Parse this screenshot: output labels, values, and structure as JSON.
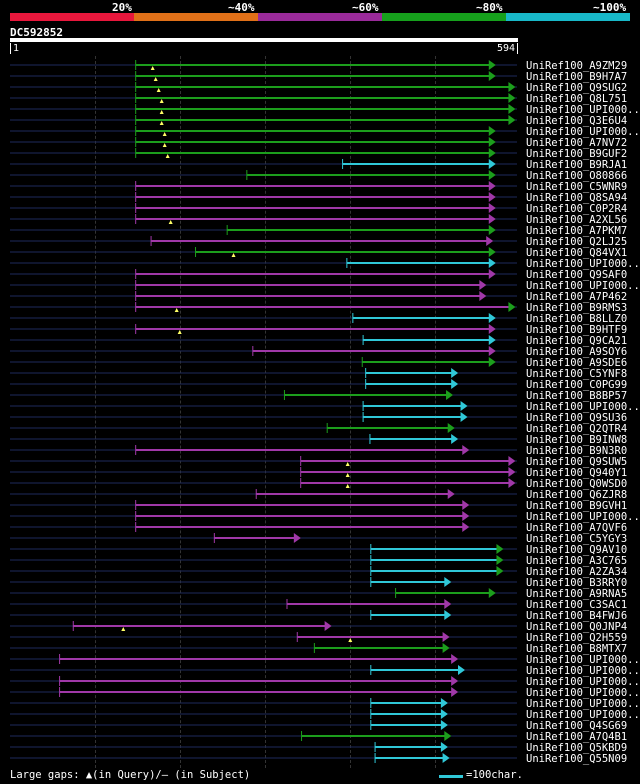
{
  "scale": {
    "segments": [
      {
        "color": "#e8173c",
        "frac": 0.2
      },
      {
        "color": "#e07018",
        "frac": 0.2
      },
      {
        "color": "#9a2a9a",
        "frac": 0.2
      },
      {
        "color": "#16a01c",
        "frac": 0.2
      },
      {
        "color": "#18b8c8",
        "frac": 0.2
      }
    ],
    "labels": [
      "20%",
      "~40%",
      "~60%",
      "~80%",
      "~100%"
    ]
  },
  "query": {
    "name": "DC592852",
    "start": "1",
    "end": "594",
    "length": 594
  },
  "colors": {
    "green": "#1c9e1c",
    "magenta": "#a038a8",
    "cyan": "#30c8d8",
    "tick": "#ffff66",
    "guide": "#1e2a5c"
  },
  "legend": {
    "gaps_text": "Large gaps: ▲(in Query)/– (in Subject)",
    "scale_text": "=100char."
  },
  "chart_data": {
    "type": "alignment",
    "x_units": "query residue position",
    "xlim": [
      1,
      594
    ],
    "hits": [
      {
        "label": "UniRef100_A9ZM29",
        "color": "green",
        "start": 148,
        "end": 568,
        "arrow": "green",
        "ticks": [
          1
        ]
      },
      {
        "label": "UniRef100_B9H7A7",
        "color": "green",
        "start": 148,
        "end": 568,
        "arrow": "green",
        "ticks": [
          2
        ]
      },
      {
        "label": "UniRef100_Q9SUG2",
        "color": "green",
        "start": 148,
        "end": 591,
        "arrow": "green",
        "ticks": [
          3
        ]
      },
      {
        "label": "UniRef100_Q8L751",
        "color": "green",
        "start": 148,
        "end": 591,
        "arrow": "green",
        "ticks": [
          4
        ]
      },
      {
        "label": "UniRef100_UPI000...",
        "color": "green",
        "start": 148,
        "end": 591,
        "arrow": "green",
        "ticks": [
          4
        ]
      },
      {
        "label": "UniRef100_Q3E6U4",
        "color": "green",
        "start": 148,
        "end": 591,
        "arrow": "green",
        "ticks": [
          4
        ]
      },
      {
        "label": "UniRef100_UPI000...",
        "color": "green",
        "start": 148,
        "end": 568,
        "arrow": "green",
        "ticks": [
          5
        ]
      },
      {
        "label": "UniRef100_A7NV72",
        "color": "green",
        "start": 148,
        "end": 568,
        "arrow": "green",
        "ticks": [
          5
        ]
      },
      {
        "label": "UniRef100_B9GUF2",
        "color": "green",
        "start": 148,
        "end": 568,
        "arrow": "green",
        "ticks": [
          6
        ]
      },
      {
        "label": "UniRef100_B9RJA1",
        "color": "cyan",
        "start": 390,
        "end": 568,
        "arrow": "cyan",
        "ticks": []
      },
      {
        "label": "UniRef100_O80866",
        "color": "green",
        "start": 278,
        "end": 568,
        "arrow": "green",
        "ticks": []
      },
      {
        "label": "UniRef100_C5WNR9",
        "color": "magenta",
        "start": 148,
        "end": 568,
        "arrow": "magenta",
        "ticks": []
      },
      {
        "label": "UniRef100_Q8SA94",
        "color": "magenta",
        "start": 148,
        "end": 568,
        "arrow": "magenta",
        "ticks": []
      },
      {
        "label": "UniRef100_C0P2R4",
        "color": "magenta",
        "start": 148,
        "end": 568,
        "arrow": "magenta",
        "ticks": []
      },
      {
        "label": "UniRef100_A2XL56",
        "color": "magenta",
        "start": 148,
        "end": 568,
        "arrow": "magenta",
        "ticks": [
          7
        ]
      },
      {
        "label": "UniRef100_A7PKM7",
        "color": "green",
        "start": 255,
        "end": 568,
        "arrow": "green",
        "ticks": []
      },
      {
        "label": "UniRef100_Q2LJ25",
        "color": "magenta",
        "start": 166,
        "end": 565,
        "arrow": "magenta",
        "ticks": []
      },
      {
        "label": "UniRef100_Q84VX1",
        "color": "green",
        "start": 218,
        "end": 568,
        "arrow": "green",
        "ticks": [
          8
        ]
      },
      {
        "label": "UniRef100_UPI000...",
        "color": "cyan",
        "start": 395,
        "end": 568,
        "arrow": "cyan",
        "ticks": []
      },
      {
        "label": "UniRef100_Q9SAF0",
        "color": "magenta",
        "start": 148,
        "end": 568,
        "arrow": "magenta",
        "ticks": []
      },
      {
        "label": "UniRef100_UPI000...",
        "color": "magenta",
        "start": 148,
        "end": 557,
        "arrow": "magenta",
        "ticks": []
      },
      {
        "label": "UniRef100_A7P462",
        "color": "magenta",
        "start": 148,
        "end": 557,
        "arrow": "magenta",
        "ticks": []
      },
      {
        "label": "UniRef100_B9RMS3",
        "color": "magenta",
        "start": 148,
        "end": 591,
        "arrow": "green",
        "ticks": [
          9
        ]
      },
      {
        "label": "UniRef100_B8LLZ0",
        "color": "cyan",
        "start": 402,
        "end": 568,
        "arrow": "cyan",
        "ticks": []
      },
      {
        "label": "UniRef100_B9HTF9",
        "color": "magenta",
        "start": 148,
        "end": 568,
        "arrow": "magenta",
        "ticks": [
          10
        ]
      },
      {
        "label": "UniRef100_Q9CA21",
        "color": "cyan",
        "start": 414,
        "end": 568,
        "arrow": "cyan",
        "ticks": []
      },
      {
        "label": "UniRef100_A9SOY6",
        "color": "magenta",
        "start": 285,
        "end": 568,
        "arrow": "magenta",
        "ticks": []
      },
      {
        "label": "UniRef100_A9SDE6",
        "color": "green",
        "start": 413,
        "end": 568,
        "arrow": "green",
        "ticks": []
      },
      {
        "label": "UniRef100_C5YNF8",
        "color": "cyan",
        "start": 417,
        "end": 524,
        "arrow": "cyan",
        "ticks": []
      },
      {
        "label": "UniRef100_C0PG99",
        "color": "cyan",
        "start": 417,
        "end": 524,
        "arrow": "cyan",
        "ticks": []
      },
      {
        "label": "UniRef100_B8BP57",
        "color": "green",
        "start": 322,
        "end": 518,
        "arrow": "green",
        "ticks": []
      },
      {
        "label": "UniRef100_UPI000...",
        "color": "cyan",
        "start": 414,
        "end": 535,
        "arrow": "cyan",
        "ticks": []
      },
      {
        "label": "UniRef100_Q9SU36",
        "color": "cyan",
        "start": 414,
        "end": 535,
        "arrow": "cyan",
        "ticks": []
      },
      {
        "label": "UniRef100_Q2QTR4",
        "color": "green",
        "start": 372,
        "end": 520,
        "arrow": "green",
        "ticks": []
      },
      {
        "label": "UniRef100_B9INW8",
        "color": "cyan",
        "start": 422,
        "end": 524,
        "arrow": "cyan",
        "ticks": []
      },
      {
        "label": "UniRef100_B9N3R0",
        "color": "magenta",
        "start": 148,
        "end": 537,
        "arrow": "magenta",
        "ticks": []
      },
      {
        "label": "UniRef100_Q9SUW5",
        "color": "magenta",
        "start": 341,
        "end": 591,
        "arrow": "magenta",
        "ticks": [
          11
        ]
      },
      {
        "label": "UniRef100_Q940Y1",
        "color": "magenta",
        "start": 341,
        "end": 591,
        "arrow": "magenta",
        "ticks": [
          11
        ]
      },
      {
        "label": "UniRef100_Q0WSD0",
        "color": "magenta",
        "start": 341,
        "end": 591,
        "arrow": "magenta",
        "ticks": [
          11
        ]
      },
      {
        "label": "UniRef100_Q6ZJR8",
        "color": "magenta",
        "start": 289,
        "end": 520,
        "arrow": "magenta",
        "ticks": []
      },
      {
        "label": "UniRef100_B9GVH1",
        "color": "magenta",
        "start": 148,
        "end": 537,
        "arrow": "magenta",
        "ticks": []
      },
      {
        "label": "UniRef100_UPI000...",
        "color": "magenta",
        "start": 148,
        "end": 537,
        "arrow": "magenta",
        "ticks": []
      },
      {
        "label": "UniRef100_A7QVF6",
        "color": "magenta",
        "start": 148,
        "end": 537,
        "arrow": "magenta",
        "ticks": []
      },
      {
        "label": "UniRef100_C5YGY3",
        "color": "magenta",
        "start": 240,
        "end": 340,
        "arrow": "magenta",
        "ticks": []
      },
      {
        "label": "UniRef100_Q9AV10",
        "color": "cyan",
        "start": 423,
        "end": 577,
        "arrow": "green",
        "ticks": []
      },
      {
        "label": "UniRef100_A3C765",
        "color": "cyan",
        "start": 423,
        "end": 577,
        "arrow": "green",
        "ticks": []
      },
      {
        "label": "UniRef100_A2ZA34",
        "color": "cyan",
        "start": 423,
        "end": 577,
        "arrow": "green",
        "ticks": []
      },
      {
        "label": "UniRef100_B3RRY0",
        "color": "cyan",
        "start": 423,
        "end": 516,
        "arrow": "cyan",
        "ticks": []
      },
      {
        "label": "UniRef100_A9RNA5",
        "color": "green",
        "start": 452,
        "end": 568,
        "arrow": "green",
        "ticks": []
      },
      {
        "label": "UniRef100_C3SAC1",
        "color": "magenta",
        "start": 325,
        "end": 516,
        "arrow": "magenta",
        "ticks": []
      },
      {
        "label": "UniRef100_B4FWJ6",
        "color": "cyan",
        "start": 423,
        "end": 516,
        "arrow": "cyan",
        "ticks": []
      },
      {
        "label": "UniRef100_Q0JNP4",
        "color": "magenta",
        "start": 75,
        "end": 376,
        "arrow": "magenta",
        "ticks": [
          12
        ]
      },
      {
        "label": "UniRef100_Q2H559",
        "color": "magenta",
        "start": 337,
        "end": 514,
        "arrow": "magenta",
        "ticks": [
          13
        ]
      },
      {
        "label": "UniRef100_B8MTX7",
        "color": "green",
        "start": 357,
        "end": 514,
        "arrow": "green",
        "ticks": []
      },
      {
        "label": "UniRef100_UPI000...",
        "color": "magenta",
        "start": 59,
        "end": 524,
        "arrow": "magenta",
        "ticks": []
      },
      {
        "label": "UniRef100_UPI000...",
        "color": "cyan",
        "start": 423,
        "end": 532,
        "arrow": "cyan",
        "ticks": []
      },
      {
        "label": "UniRef100_UPI000...",
        "color": "magenta",
        "start": 59,
        "end": 524,
        "arrow": "magenta",
        "ticks": []
      },
      {
        "label": "UniRef100_UPI000...",
        "color": "magenta",
        "start": 59,
        "end": 524,
        "arrow": "magenta",
        "ticks": []
      },
      {
        "label": "UniRef100_UPI000...",
        "color": "cyan",
        "start": 423,
        "end": 512,
        "arrow": "cyan",
        "ticks": []
      },
      {
        "label": "UniRef100_UPI000...",
        "color": "cyan",
        "start": 423,
        "end": 512,
        "arrow": "cyan",
        "ticks": []
      },
      {
        "label": "UniRef100_Q4SG69",
        "color": "cyan",
        "start": 423,
        "end": 512,
        "arrow": "cyan",
        "ticks": []
      },
      {
        "label": "UniRef100_A7Q4B1",
        "color": "green",
        "start": 342,
        "end": 516,
        "arrow": "green",
        "ticks": []
      },
      {
        "label": "UniRef100_Q5KBD9",
        "color": "cyan",
        "start": 428,
        "end": 512,
        "arrow": "cyan",
        "ticks": []
      },
      {
        "label": "UniRef100_Q55N09",
        "color": "cyan",
        "start": 428,
        "end": 514,
        "arrow": "cyan",
        "ticks": []
      }
    ]
  }
}
